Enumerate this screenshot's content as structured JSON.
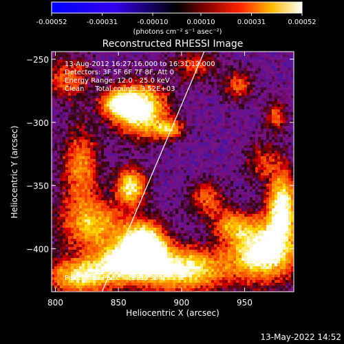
{
  "colorbar": {
    "ticks": [
      "-0.00052",
      "-0.00031",
      "-0.00010",
      "0.00010",
      "0.00031",
      "0.00052"
    ],
    "tick_values": [
      -0.00052,
      -0.00031,
      -0.0001,
      0.0001,
      0.00031,
      0.00052
    ],
    "range": [
      -0.00052,
      0.00052
    ],
    "units": "(photons cm⁻² s⁻¹ asec⁻²)"
  },
  "chart_data": {
    "type": "heatmap",
    "title": "Reconstructed RHESSI Image",
    "xlabel": "Heliocentric X (arcsec)",
    "ylabel": "Heliocentric Y (arcsec)",
    "xlim": [
      797,
      989
    ],
    "ylim": [
      -434,
      -244
    ],
    "xticks": [
      800,
      850,
      900,
      950
    ],
    "yticks": [
      -250,
      -300,
      -350,
      -400
    ],
    "xtick_labels": [
      "800",
      "850",
      "900",
      "950"
    ],
    "ytick_labels": [
      "−250",
      "−300",
      "−350",
      "−400"
    ],
    "limb_line": {
      "x": [
        837,
        918
      ],
      "y": [
        -434,
        -244
      ]
    },
    "bright_regions": [
      {
        "x": 868,
        "y": -290,
        "sx": 14,
        "sy": 14,
        "a": 1.0
      },
      {
        "x": 850,
        "y": -285,
        "sx": 10,
        "sy": 8,
        "a": 0.7
      },
      {
        "x": 890,
        "y": -305,
        "sx": 8,
        "sy": 5,
        "a": 0.6
      },
      {
        "x": 860,
        "y": -350,
        "sx": 8,
        "sy": 10,
        "a": 0.85
      },
      {
        "x": 870,
        "y": -395,
        "sx": 12,
        "sy": 12,
        "a": 1.15
      },
      {
        "x": 855,
        "y": -410,
        "sx": 16,
        "sy": 10,
        "a": 0.8
      },
      {
        "x": 830,
        "y": -380,
        "sx": 18,
        "sy": 14,
        "a": 0.65
      },
      {
        "x": 820,
        "y": -335,
        "sx": 10,
        "sy": 22,
        "a": 0.55
      },
      {
        "x": 810,
        "y": -265,
        "sx": 12,
        "sy": 12,
        "a": 0.45
      },
      {
        "x": 820,
        "y": -420,
        "sx": 18,
        "sy": 10,
        "a": 0.8
      },
      {
        "x": 900,
        "y": -415,
        "sx": 25,
        "sy": 12,
        "a": 0.9
      },
      {
        "x": 965,
        "y": -400,
        "sx": 18,
        "sy": 16,
        "a": 1.05
      },
      {
        "x": 980,
        "y": -365,
        "sx": 8,
        "sy": 18,
        "a": 0.95
      },
      {
        "x": 940,
        "y": -380,
        "sx": 10,
        "sy": 8,
        "a": 0.5
      },
      {
        "x": 920,
        "y": -360,
        "sx": 10,
        "sy": 10,
        "a": 0.45
      },
      {
        "x": 945,
        "y": -270,
        "sx": 8,
        "sy": 8,
        "a": 0.45
      },
      {
        "x": 975,
        "y": -295,
        "sx": 6,
        "sy": 8,
        "a": 0.45
      },
      {
        "x": 910,
        "y": -255,
        "sx": 12,
        "sy": 8,
        "a": 0.4
      },
      {
        "x": 965,
        "y": -330,
        "sx": 10,
        "sy": 10,
        "a": 0.35
      }
    ],
    "annotations": {
      "time": "13-Aug-2012 16:27:16.000 to 16:31:12.000",
      "detectors": "Detectors: 3F 5F 6F 7F 8F, Att 0",
      "energy": "Energy Range: 12.0 - 25.0 keV",
      "clean": "Clean     Total counts: 3.52E+03",
      "peak": "Position of Peak = [981,-364]"
    }
  },
  "footer": {
    "date": "13-May-2022 14:52"
  }
}
